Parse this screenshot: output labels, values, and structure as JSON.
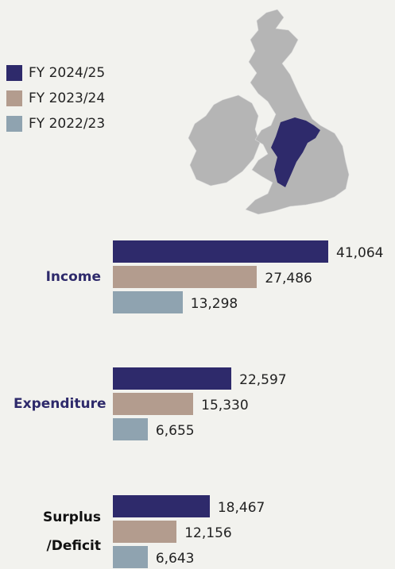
{
  "chart_data": {
    "type": "bar",
    "orientation": "horizontal",
    "categories": [
      "Income",
      "Expenditure",
      "Surplus /Deficit"
    ],
    "category_colors": [
      "#2e2a6b",
      "#2e2a6b",
      "#111111"
    ],
    "series": [
      {
        "name": "FY 2024/25",
        "color": "#2e2a6b",
        "values": [
          41064,
          22597,
          18467
        ],
        "value_labels": [
          "41,064",
          "22,597",
          "18,467"
        ]
      },
      {
        "name": "FY 2023/24",
        "color": "#b39c8e",
        "values": [
          27486,
          15330,
          12156
        ],
        "value_labels": [
          "27,486",
          "15,330",
          "12,156"
        ]
      },
      {
        "name": "FY 2022/23",
        "color": "#8fa3b0",
        "values": [
          13298,
          6655,
          6643
        ],
        "value_labels": [
          "13,298",
          "6,655",
          "6,643"
        ]
      }
    ],
    "legend": "top-left"
  }
}
